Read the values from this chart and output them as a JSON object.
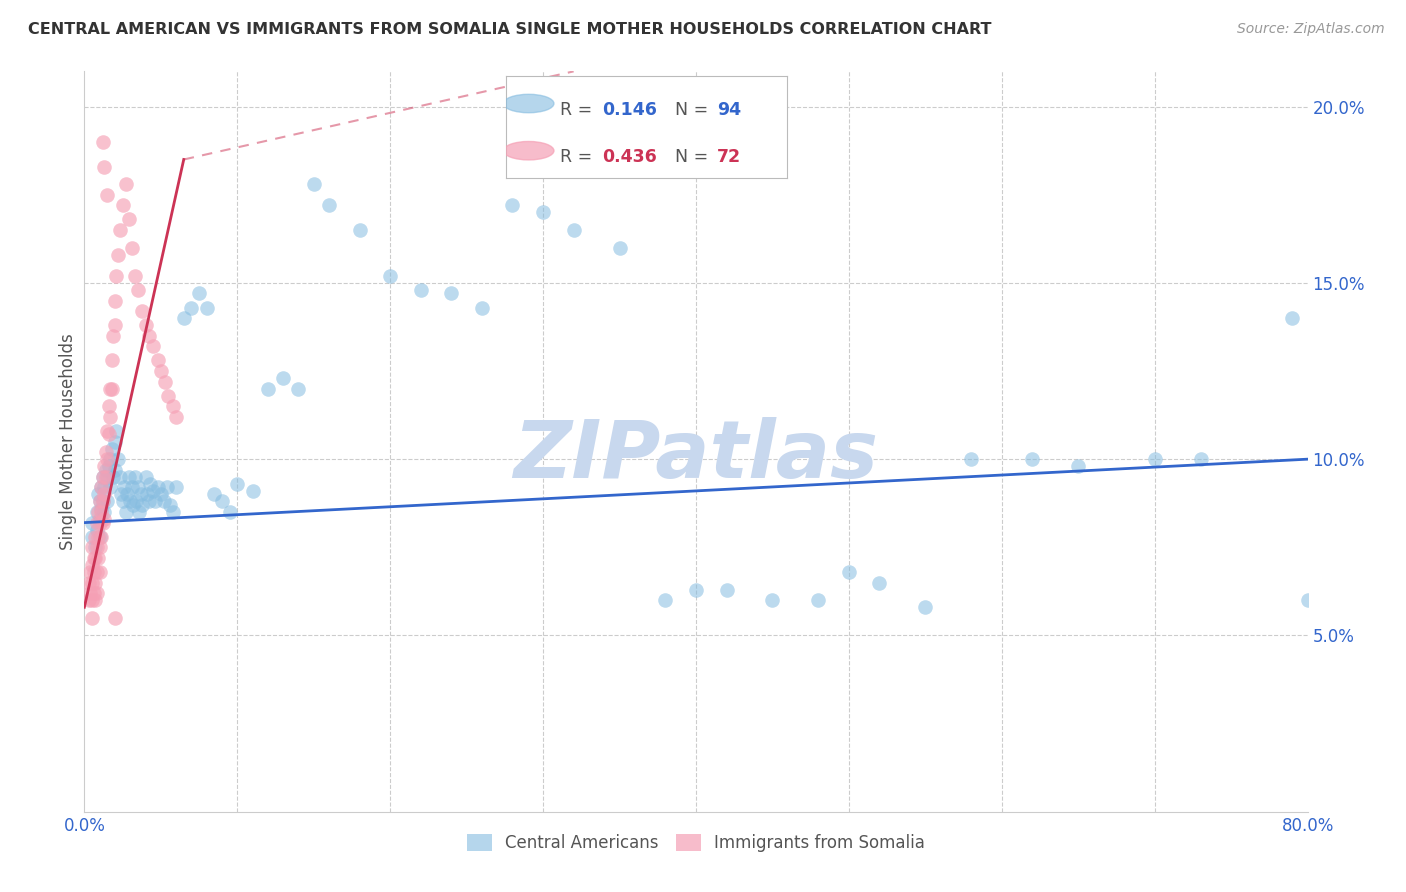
{
  "title": "CENTRAL AMERICAN VS IMMIGRANTS FROM SOMALIA SINGLE MOTHER HOUSEHOLDS CORRELATION CHART",
  "source": "Source: ZipAtlas.com",
  "ylabel": "Single Mother Households",
  "xlim": [
    0.0,
    0.8
  ],
  "ylim": [
    0.0,
    0.21
  ],
  "yticks": [
    0.0,
    0.05,
    0.1,
    0.15,
    0.2
  ],
  "xticks": [
    0.0,
    0.1,
    0.2,
    0.3,
    0.4,
    0.5,
    0.6,
    0.7,
    0.8
  ],
  "xtick_labels": [
    "0.0%",
    "",
    "",
    "",
    "",
    "",
    "",
    "",
    "80.0%"
  ],
  "ytick_labels_right": [
    "",
    "5.0%",
    "10.0%",
    "15.0%",
    "20.0%"
  ],
  "blue_R": 0.146,
  "blue_N": 94,
  "pink_R": 0.436,
  "pink_N": 72,
  "blue_color": "#85bce0",
  "pink_color": "#f5a0b5",
  "blue_line_color": "#3366cc",
  "pink_line_color": "#cc3355",
  "background_color": "#ffffff",
  "grid_color": "#cccccc",
  "watermark": "ZIPatlas",
  "watermark_color": "#c8d8ee",
  "legend_label_blue": "Central Americans",
  "legend_label_pink": "Immigrants from Somalia",
  "blue_line_x": [
    0.0,
    0.8
  ],
  "blue_line_y": [
    0.082,
    0.1
  ],
  "pink_line_x": [
    0.0,
    0.065
  ],
  "pink_line_y": [
    0.058,
    0.185
  ],
  "blue_scatter_x": [
    0.005,
    0.005,
    0.007,
    0.008,
    0.008,
    0.009,
    0.01,
    0.01,
    0.01,
    0.011,
    0.011,
    0.012,
    0.012,
    0.013,
    0.013,
    0.014,
    0.015,
    0.015,
    0.016,
    0.017,
    0.017,
    0.018,
    0.019,
    0.02,
    0.02,
    0.021,
    0.022,
    0.023,
    0.024,
    0.025,
    0.026,
    0.027,
    0.028,
    0.029,
    0.03,
    0.031,
    0.032,
    0.033,
    0.034,
    0.035,
    0.036,
    0.037,
    0.038,
    0.04,
    0.041,
    0.042,
    0.043,
    0.045,
    0.046,
    0.048,
    0.05,
    0.052,
    0.054,
    0.056,
    0.058,
    0.06,
    0.065,
    0.07,
    0.075,
    0.08,
    0.085,
    0.09,
    0.095,
    0.1,
    0.11,
    0.12,
    0.13,
    0.14,
    0.15,
    0.16,
    0.18,
    0.2,
    0.22,
    0.24,
    0.26,
    0.28,
    0.3,
    0.32,
    0.35,
    0.38,
    0.4,
    0.42,
    0.45,
    0.48,
    0.5,
    0.52,
    0.55,
    0.58,
    0.62,
    0.65,
    0.7,
    0.73,
    0.79,
    0.8
  ],
  "blue_scatter_y": [
    0.082,
    0.078,
    0.075,
    0.085,
    0.08,
    0.09,
    0.088,
    0.083,
    0.078,
    0.092,
    0.086,
    0.095,
    0.088,
    0.092,
    0.085,
    0.097,
    0.095,
    0.088,
    0.098,
    0.1,
    0.092,
    0.103,
    0.095,
    0.105,
    0.097,
    0.108,
    0.1,
    0.095,
    0.09,
    0.088,
    0.092,
    0.085,
    0.09,
    0.095,
    0.088,
    0.092,
    0.087,
    0.095,
    0.088,
    0.092,
    0.085,
    0.09,
    0.087,
    0.095,
    0.09,
    0.088,
    0.093,
    0.091,
    0.088,
    0.092,
    0.09,
    0.088,
    0.092,
    0.087,
    0.085,
    0.092,
    0.14,
    0.143,
    0.147,
    0.143,
    0.09,
    0.088,
    0.085,
    0.093,
    0.091,
    0.12,
    0.123,
    0.12,
    0.178,
    0.172,
    0.165,
    0.152,
    0.148,
    0.147,
    0.143,
    0.172,
    0.17,
    0.165,
    0.16,
    0.06,
    0.063,
    0.063,
    0.06,
    0.06,
    0.068,
    0.065,
    0.058,
    0.1,
    0.1,
    0.098,
    0.1,
    0.1,
    0.14,
    0.06
  ],
  "pink_scatter_x": [
    0.003,
    0.003,
    0.004,
    0.004,
    0.005,
    0.005,
    0.005,
    0.005,
    0.005,
    0.006,
    0.006,
    0.006,
    0.007,
    0.007,
    0.007,
    0.007,
    0.008,
    0.008,
    0.008,
    0.008,
    0.009,
    0.009,
    0.009,
    0.01,
    0.01,
    0.01,
    0.01,
    0.011,
    0.011,
    0.011,
    0.012,
    0.012,
    0.012,
    0.013,
    0.013,
    0.013,
    0.014,
    0.014,
    0.015,
    0.015,
    0.016,
    0.016,
    0.017,
    0.017,
    0.018,
    0.018,
    0.019,
    0.02,
    0.02,
    0.021,
    0.022,
    0.023,
    0.025,
    0.027,
    0.029,
    0.031,
    0.033,
    0.035,
    0.038,
    0.04,
    0.042,
    0.045,
    0.048,
    0.05,
    0.053,
    0.055,
    0.058,
    0.06,
    0.012,
    0.013,
    0.015,
    0.02
  ],
  "pink_scatter_y": [
    0.065,
    0.06,
    0.068,
    0.062,
    0.075,
    0.07,
    0.065,
    0.06,
    0.055,
    0.072,
    0.068,
    0.062,
    0.078,
    0.072,
    0.065,
    0.06,
    0.082,
    0.075,
    0.068,
    0.062,
    0.085,
    0.078,
    0.072,
    0.088,
    0.082,
    0.075,
    0.068,
    0.092,
    0.085,
    0.078,
    0.095,
    0.088,
    0.082,
    0.098,
    0.09,
    0.083,
    0.102,
    0.095,
    0.108,
    0.1,
    0.115,
    0.107,
    0.12,
    0.112,
    0.128,
    0.12,
    0.135,
    0.145,
    0.138,
    0.152,
    0.158,
    0.165,
    0.172,
    0.178,
    0.168,
    0.16,
    0.152,
    0.148,
    0.142,
    0.138,
    0.135,
    0.132,
    0.128,
    0.125,
    0.122,
    0.118,
    0.115,
    0.112,
    0.19,
    0.183,
    0.175,
    0.055
  ]
}
